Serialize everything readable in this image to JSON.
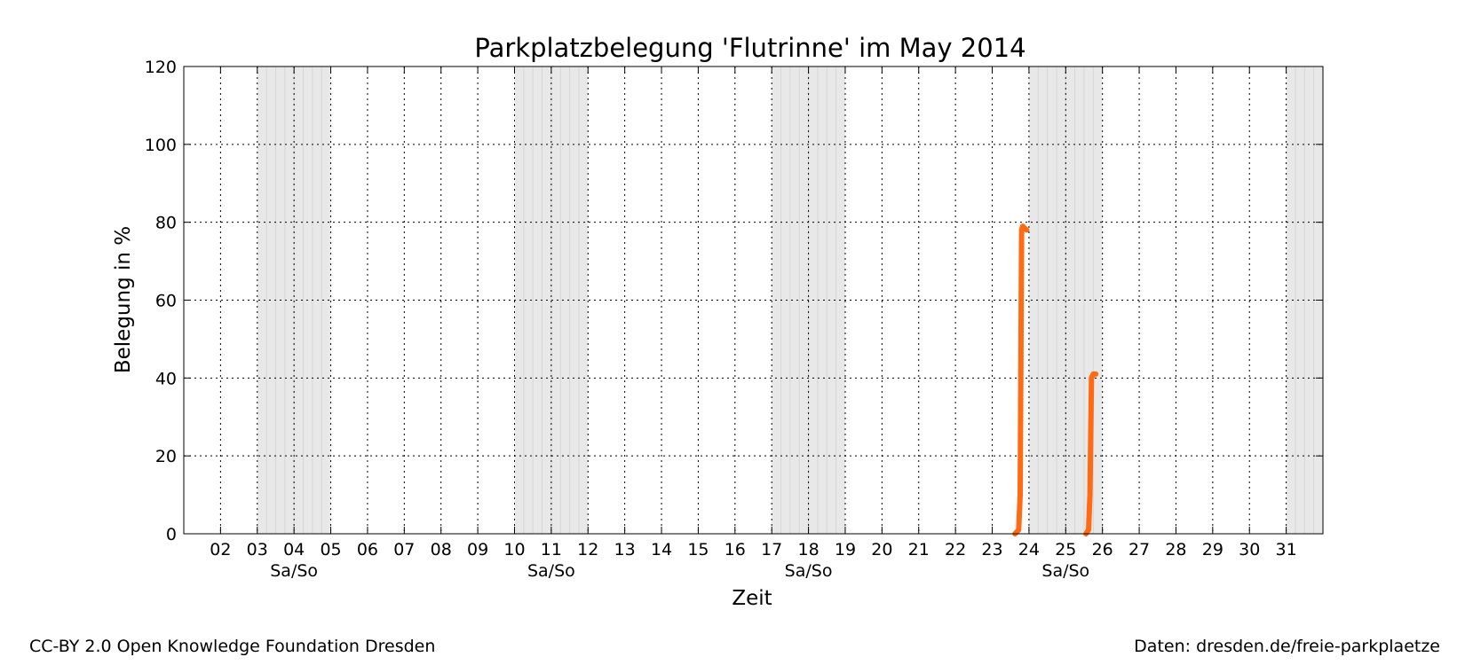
{
  "chart_data": {
    "type": "line",
    "title": "Parkplatzbelegung 'Flutrinne' im May 2014",
    "xlabel": "Zeit",
    "ylabel": "Belegung in %",
    "ylim": [
      0,
      120
    ],
    "yticks": [
      0,
      20,
      40,
      60,
      80,
      100,
      120
    ],
    "xlim_days": [
      1.0,
      32.0
    ],
    "xticks": [
      {
        "day": 2,
        "label": "02"
      },
      {
        "day": 3,
        "label": "03"
      },
      {
        "day": 4,
        "label": "04"
      },
      {
        "day": 5,
        "label": "05"
      },
      {
        "day": 6,
        "label": "06"
      },
      {
        "day": 7,
        "label": "07"
      },
      {
        "day": 8,
        "label": "08"
      },
      {
        "day": 9,
        "label": "09"
      },
      {
        "day": 10,
        "label": "10"
      },
      {
        "day": 11,
        "label": "11"
      },
      {
        "day": 12,
        "label": "12"
      },
      {
        "day": 13,
        "label": "13"
      },
      {
        "day": 14,
        "label": "14"
      },
      {
        "day": 15,
        "label": "15"
      },
      {
        "day": 16,
        "label": "16"
      },
      {
        "day": 17,
        "label": "17"
      },
      {
        "day": 18,
        "label": "18"
      },
      {
        "day": 19,
        "label": "19"
      },
      {
        "day": 20,
        "label": "20"
      },
      {
        "day": 21,
        "label": "21"
      },
      {
        "day": 22,
        "label": "22"
      },
      {
        "day": 23,
        "label": "23"
      },
      {
        "day": 24,
        "label": "24"
      },
      {
        "day": 25,
        "label": "25"
      },
      {
        "day": 26,
        "label": "26"
      },
      {
        "day": 27,
        "label": "27"
      },
      {
        "day": 28,
        "label": "28"
      },
      {
        "day": 29,
        "label": "29"
      },
      {
        "day": 30,
        "label": "30"
      },
      {
        "day": 31,
        "label": "31"
      }
    ],
    "weekends": [
      {
        "start": 3,
        "end": 5,
        "label": "Sa/So"
      },
      {
        "start": 10,
        "end": 12,
        "label": "Sa/So"
      },
      {
        "start": 17,
        "end": 19,
        "label": "Sa/So"
      },
      {
        "start": 24,
        "end": 26,
        "label": "Sa/So"
      },
      {
        "start": 31,
        "end": 32,
        "label": ""
      }
    ],
    "grid": true,
    "series": [
      {
        "color": "#ff6a13",
        "segments": [
          [
            [
              23.62,
              0
            ],
            [
              23.72,
              1
            ],
            [
              23.76,
              10
            ],
            [
              23.8,
              78
            ],
            [
              23.83,
              79
            ],
            [
              23.88,
              78.5
            ],
            [
              23.94,
              78
            ]
          ],
          [
            [
              25.55,
              0
            ],
            [
              25.62,
              1
            ],
            [
              25.66,
              10
            ],
            [
              25.7,
              40
            ],
            [
              25.75,
              41
            ],
            [
              25.82,
              41
            ]
          ]
        ]
      }
    ]
  },
  "footer": {
    "left": "CC-BY 2.0 Open Knowledge Foundation Dresden",
    "right": "Daten: dresden.de/freie-parkplaetze"
  }
}
